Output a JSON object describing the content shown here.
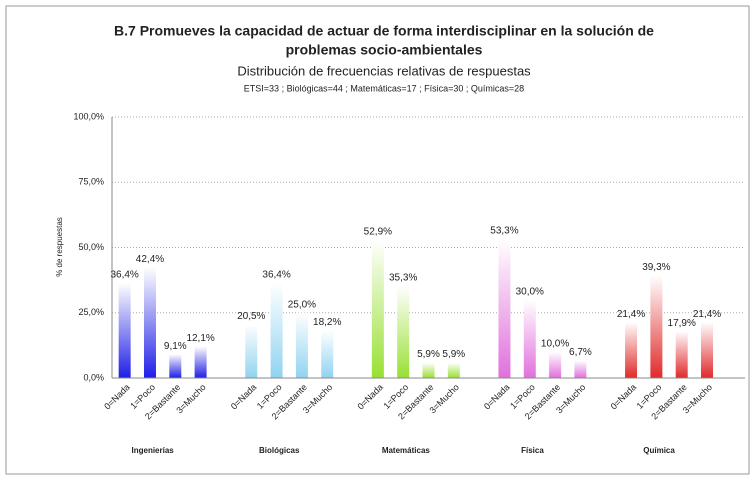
{
  "chart_data": {
    "type": "grouped-bar",
    "title": "B.7  Promueves la capacidad de actuar de forma interdisciplinar en la solución de",
    "title_line2": "problemas socio-ambientales",
    "subtitle": "Distribución de frecuencias relativas de respuestas",
    "note": "ETSI=33 ; Biológicas=44 ; Matemáticas=17 ; Física=30 ; Químicas=28",
    "y_label": "% de respuestas",
    "categories": [
      "0=Nada",
      "1=Poco",
      "2=Bastante",
      "3=Mucho"
    ],
    "series": [
      {
        "name": "Ingenierías",
        "color": "#1e1ee6",
        "values": [
          36.4,
          42.4,
          9.1,
          12.1
        ],
        "value_labels": [
          "36,4%",
          "42,4%",
          "9,1%",
          "12,1%"
        ]
      },
      {
        "name": "Biológicas",
        "color": "#8fd3f0",
        "values": [
          20.5,
          36.4,
          25.0,
          18.2
        ],
        "value_labels": [
          "20,5%",
          "36,4%",
          "25,0%",
          "18,2%"
        ]
      },
      {
        "name": "Matemáticas",
        "color": "#98e032",
        "values": [
          52.9,
          35.3,
          5.9,
          5.9
        ],
        "value_labels": [
          "52,9%",
          "35,3%",
          "5,9%",
          "5,9%"
        ]
      },
      {
        "name": "Física",
        "color": "#e070dc",
        "values": [
          53.3,
          30.0,
          10.0,
          6.7
        ],
        "value_labels": [
          "53,3%",
          "30,0%",
          "10,0%",
          "6,7%"
        ]
      },
      {
        "name": "Química",
        "color": "#e02a2a",
        "values": [
          21.4,
          39.3,
          17.9,
          21.4
        ],
        "value_labels": [
          "21,4%",
          "39,3%",
          "17,9%",
          "21,4%"
        ]
      }
    ],
    "ylim": [
      0,
      100
    ],
    "yticks": [
      {
        "value": 0,
        "label": "0,0%"
      },
      {
        "value": 25,
        "label": "25,0%"
      },
      {
        "value": 50,
        "label": "50,0%"
      },
      {
        "value": 75,
        "label": "75,0%"
      },
      {
        "value": 100,
        "label": "100,0%"
      }
    ],
    "grid": true
  }
}
